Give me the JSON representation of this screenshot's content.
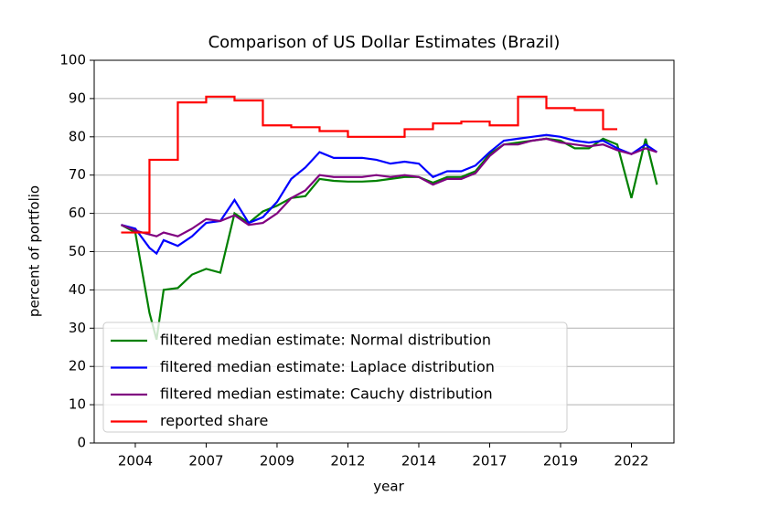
{
  "chart_data": {
    "type": "line",
    "title": "Comparison of US Dollar Estimates (Brazil)",
    "xlabel": "year",
    "ylabel": "percent of portfolio",
    "x": [
      2003.5,
      2004.0,
      2004.5,
      2004.75,
      2005.0,
      2005.5,
      2006.0,
      2006.5,
      2007.0,
      2007.5,
      2008.0,
      2008.5,
      2009.0,
      2009.5,
      2010.0,
      2010.5,
      2011.0,
      2011.5,
      2012.0,
      2012.5,
      2013.0,
      2013.5,
      2014.0,
      2014.5,
      2015.0,
      2015.5,
      2016.0,
      2016.5,
      2017.0,
      2017.5,
      2018.0,
      2018.5,
      2019.0,
      2019.5,
      2020.0,
      2020.5,
      2021.0,
      2021.5,
      2022.0,
      2022.4
    ],
    "series": [
      {
        "name": "filtered median estimate: Normal distribution",
        "color": "#008000",
        "values": [
          57,
          55,
          34,
          27,
          40,
          40.5,
          44,
          45.5,
          44.5,
          60,
          57.5,
          60.5,
          62,
          64,
          64.5,
          69,
          68.5,
          68.3,
          68.3,
          68.5,
          69,
          69.5,
          69.5,
          68,
          69.5,
          69.5,
          71,
          75.5,
          78,
          78.5,
          79,
          79.5,
          79,
          77,
          77,
          79.5,
          78,
          64,
          79.5,
          67.5
        ]
      },
      {
        "name": "filtered median estimate: Laplace distribution",
        "color": "#0000ff",
        "values": [
          57,
          56,
          51,
          49.5,
          53,
          51.5,
          54,
          57.5,
          58,
          63.5,
          57.5,
          59,
          63,
          69,
          72,
          76,
          74.5,
          74.5,
          74.5,
          74,
          73,
          73.5,
          73,
          69.5,
          71,
          71,
          72.5,
          76,
          79,
          79.5,
          80,
          80.5,
          80,
          79,
          78.5,
          79,
          77,
          75.5,
          78,
          76
        ]
      },
      {
        "name": "filtered median estimate: Cauchy distribution",
        "color": "#800080",
        "values": [
          57,
          55.5,
          54.5,
          54,
          55,
          54,
          56,
          58.5,
          58,
          59.5,
          57,
          57.5,
          60,
          64,
          66,
          70,
          69.5,
          69.5,
          69.5,
          70,
          69.5,
          70,
          69.5,
          67.5,
          69,
          69,
          70.5,
          75,
          78,
          78,
          79,
          79.5,
          78.5,
          78,
          77.5,
          78,
          76.5,
          75.5,
          77,
          76
        ]
      },
      {
        "name": "reported share",
        "color": "#ff0000",
        "drawstyle": "steps-post",
        "values": [
          55,
          55,
          74,
          74,
          74,
          89,
          89,
          90.5,
          90.5,
          89.5,
          89.5,
          83,
          83,
          82.5,
          82.5,
          81.5,
          81.5,
          80,
          80,
          80,
          80,
          82,
          82,
          83.5,
          83.5,
          84,
          84,
          83,
          83,
          90.5,
          90.5,
          87.5,
          87.5,
          87,
          87,
          82,
          82,
          null,
          null,
          null
        ]
      }
    ],
    "xlim": [
      2002.55,
      2023.0
    ],
    "xticks": [
      {
        "value": 2004,
        "label": "2004"
      },
      {
        "value": 2006.5,
        "label": "2007"
      },
      {
        "value": 2009,
        "label": "2009"
      },
      {
        "value": 2011.5,
        "label": "2012"
      },
      {
        "value": 2014,
        "label": "2014"
      },
      {
        "value": 2016.5,
        "label": "2017"
      },
      {
        "value": 2019,
        "label": "2019"
      },
      {
        "value": 2021.5,
        "label": "2022"
      }
    ],
    "ylim": [
      0,
      100
    ],
    "yticks": [
      0,
      10,
      20,
      30,
      40,
      50,
      60,
      70,
      80,
      90,
      100
    ],
    "grid": "y",
    "legend": "lower left"
  }
}
